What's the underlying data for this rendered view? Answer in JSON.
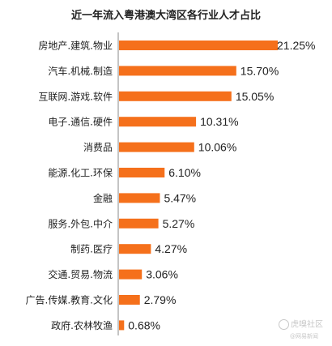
{
  "chart_data": {
    "type": "bar",
    "orientation": "horizontal",
    "title": "近一年流入粤港澳大湾区各行业人才占比",
    "categories": [
      "房地产.建筑.物业",
      "汽车.机械.制造",
      "互联网.游戏.软件",
      "电子.通信.硬件",
      "消费品",
      "能源.化工.环保",
      "金融",
      "服务.外包.中介",
      "制药.医疗",
      "交通.贸易.物流",
      "广告.传媒.教育.文化",
      "政府.农林牧渔"
    ],
    "values": [
      21.25,
      15.7,
      15.05,
      10.31,
      10.06,
      6.1,
      5.47,
      5.27,
      4.27,
      3.06,
      2.79,
      0.68
    ],
    "value_labels": [
      "21.25%",
      "15.70%",
      "15.05%",
      "10.31%",
      "10.06%",
      "6.10%",
      "5.47%",
      "5.27%",
      "4.27%",
      "3.06%",
      "2.79%",
      "0.68%"
    ],
    "unit": "%",
    "xlim": [
      0,
      21.25
    ],
    "grid": false,
    "legend": "none",
    "bar_color": "#f5701b",
    "axis_color": "#888888"
  },
  "watermark": {
    "brand": "虎嗅社区",
    "sub": "@网易新闻"
  }
}
